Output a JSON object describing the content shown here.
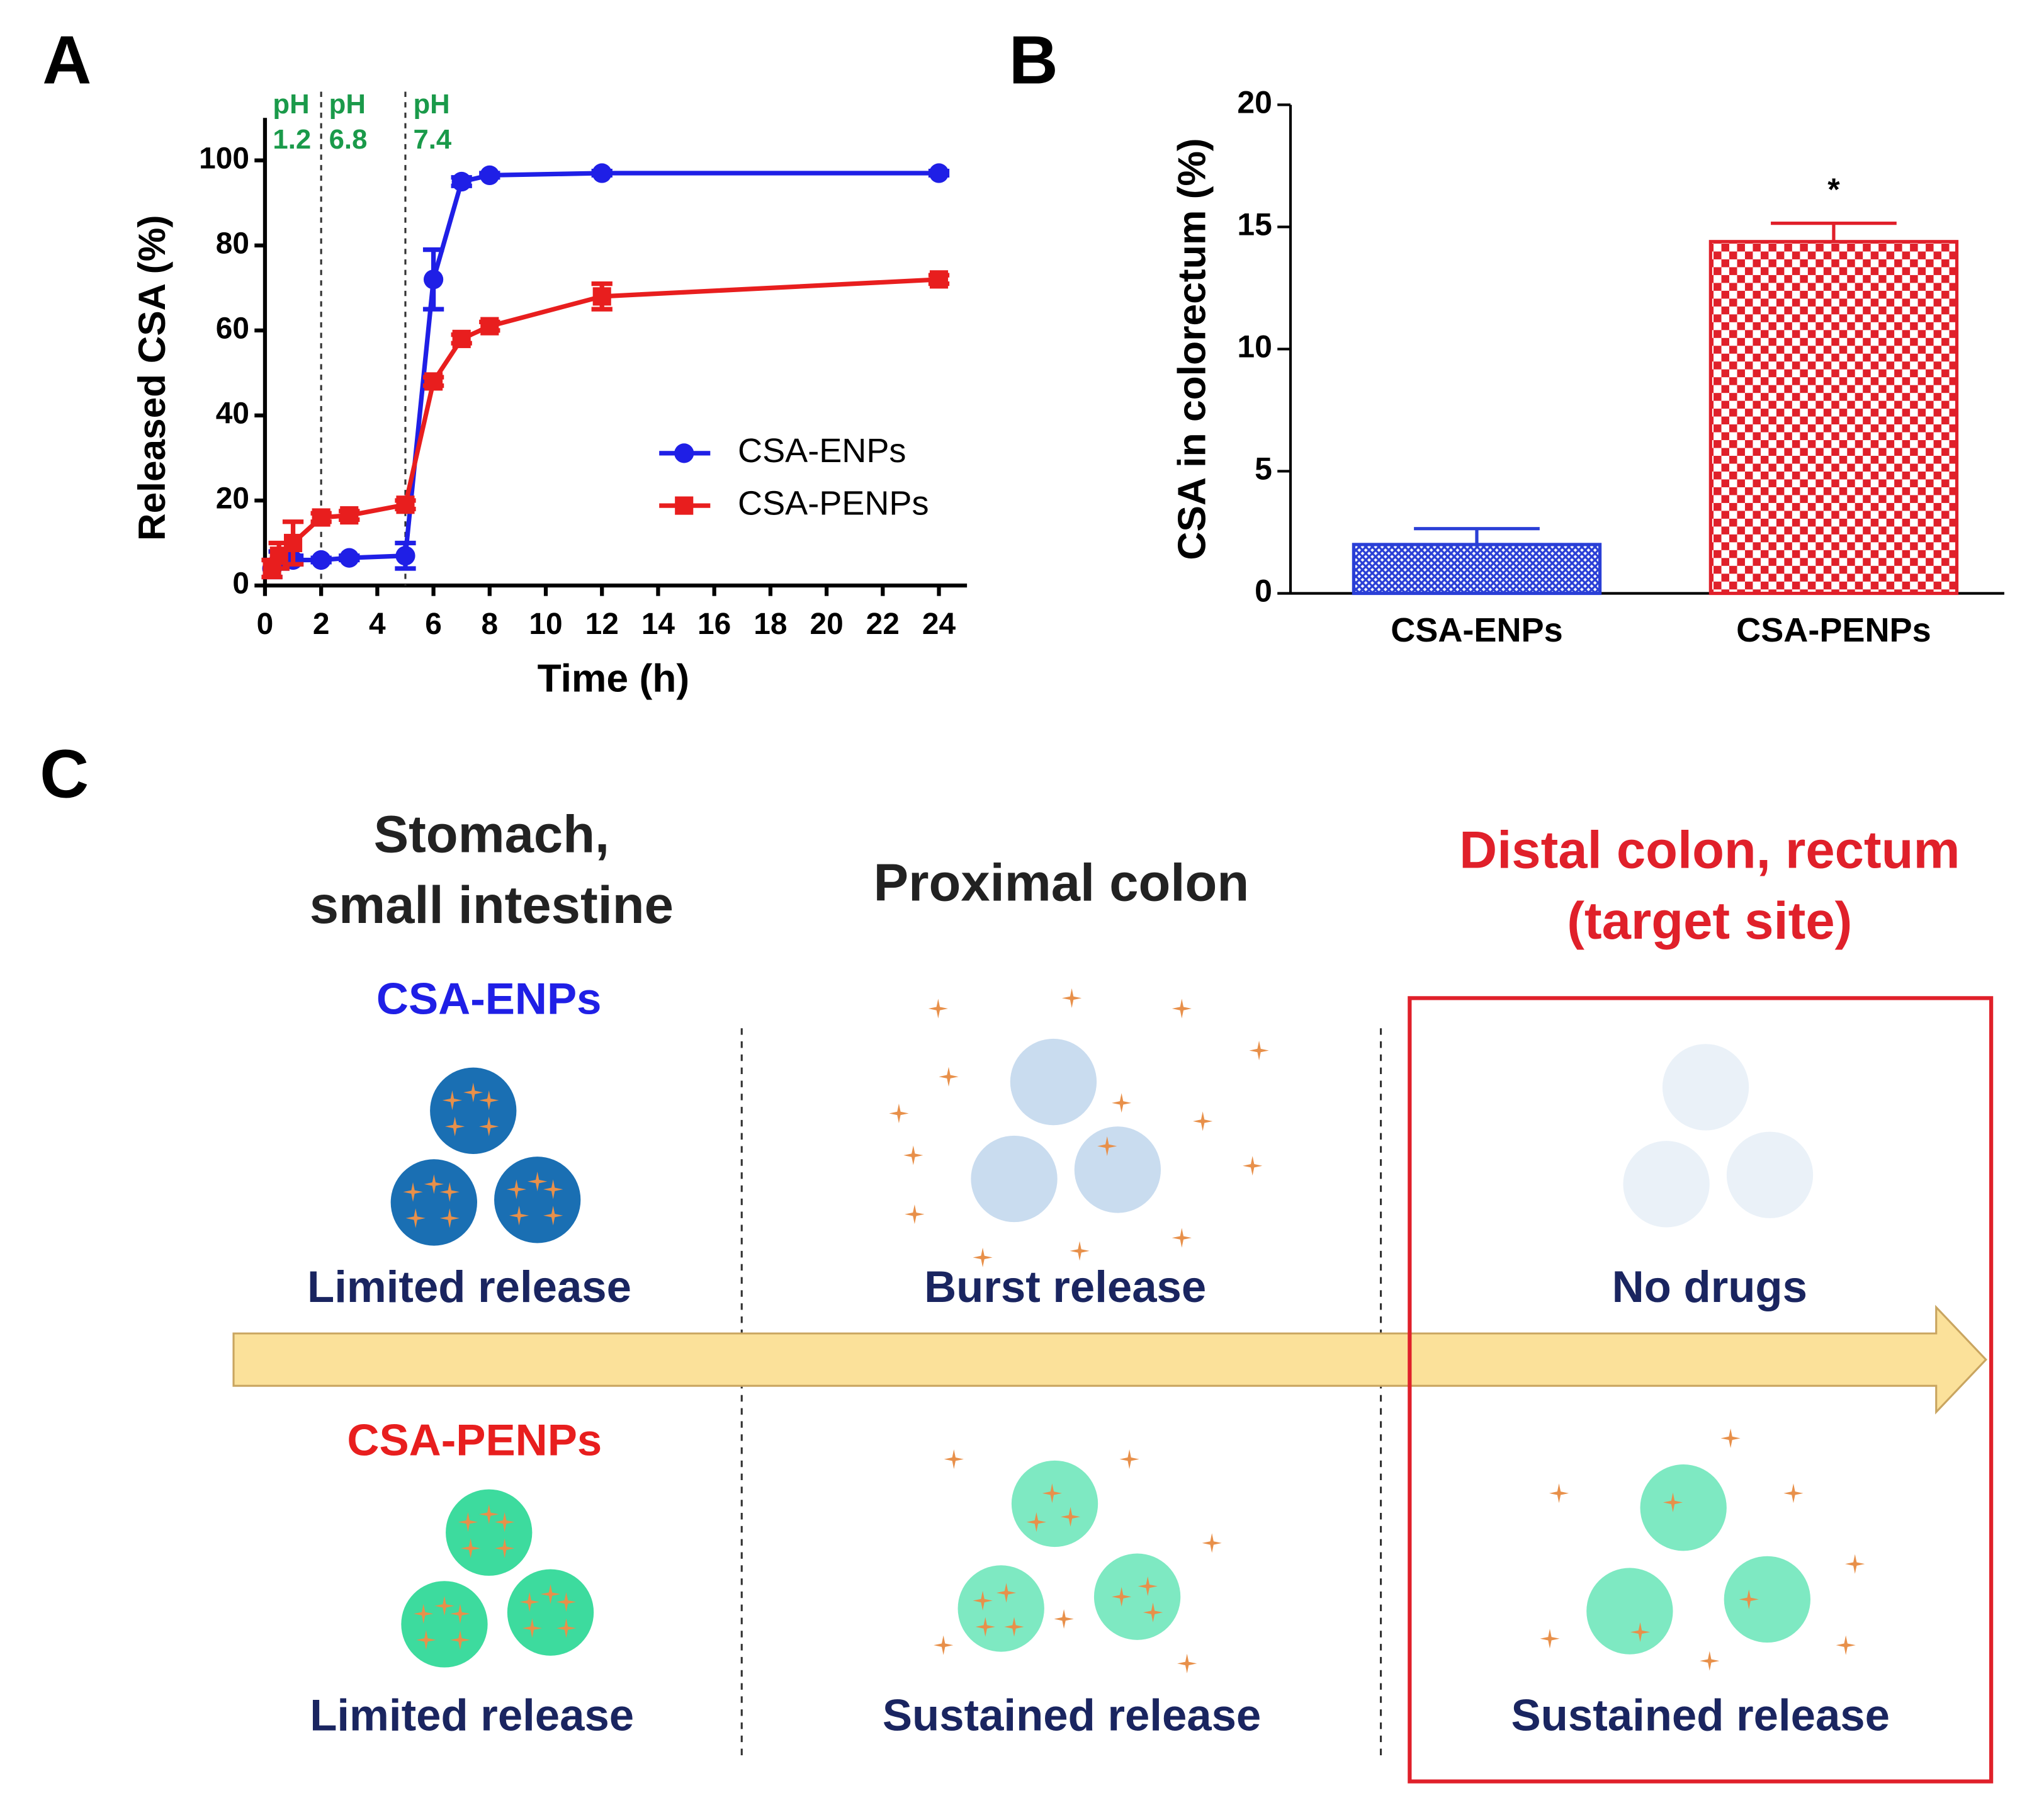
{
  "chart_data": [
    {
      "panel": "A",
      "type": "line",
      "xlabel": "Time (h)",
      "ylabel": "Released CSA (%)",
      "xlim": [
        0,
        25
      ],
      "xticks": [
        0,
        2,
        4,
        6,
        8,
        10,
        12,
        14,
        16,
        18,
        20,
        22,
        24
      ],
      "ylim": [
        0,
        110
      ],
      "yticks": [
        0,
        20,
        40,
        60,
        80,
        100
      ],
      "vlines": [
        2,
        5
      ],
      "annotations": [
        {
          "lines": [
            "pH",
            "1.2"
          ],
          "x": 0
        },
        {
          "lines": [
            "pH",
            "6.8"
          ],
          "x": 2
        },
        {
          "lines": [
            "pH",
            "7.4"
          ],
          "x": 5
        }
      ],
      "legend": "right",
      "series": [
        {
          "name": "CSA-ENPs",
          "color": "#1f1fe6",
          "marker": "circle",
          "x": [
            0.25,
            0.5,
            1,
            2,
            3,
            5,
            6,
            7,
            8,
            12,
            24
          ],
          "values": [
            4,
            6,
            6,
            6,
            6.5,
            7,
            72,
            95,
            96.5,
            97,
            97
          ],
          "errors": [
            2,
            2,
            1,
            0.5,
            0.5,
            3,
            7,
            1,
            0.5,
            0.5,
            0.5
          ]
        },
        {
          "name": "CSA-PENPs",
          "color": "#e81e1e",
          "marker": "square",
          "x": [
            0.25,
            0.5,
            1,
            2,
            3,
            5,
            6,
            7,
            8,
            12,
            24
          ],
          "values": [
            4,
            7,
            10,
            16,
            16.5,
            19,
            48,
            58,
            61,
            68,
            72
          ],
          "errors": [
            2,
            3,
            5,
            1,
            1,
            1,
            1,
            1,
            1,
            3,
            1
          ]
        }
      ]
    },
    {
      "panel": "B",
      "type": "bar",
      "ylabel": "CSA in colorectum (%)",
      "categories": [
        "CSA-ENPs",
        "CSA-PENPs"
      ],
      "values": [
        2.0,
        14.4
      ],
      "errors": [
        0.65,
        0.75
      ],
      "colors": [
        "#2a3fd6",
        "#e0202a"
      ],
      "annotations": [
        null,
        "*"
      ],
      "ylim": [
        0,
        20
      ],
      "yticks": [
        0,
        5,
        10,
        15,
        20
      ]
    }
  ],
  "diagram": {
    "panel": "C",
    "columns": [
      {
        "title": [
          "Stomach,",
          "small intestine"
        ]
      },
      {
        "title": [
          "Proximal colon"
        ]
      },
      {
        "title": [
          "Distal colon, rectum",
          "(target site)"
        ]
      }
    ],
    "rows": [
      {
        "name": "CSA-ENPs",
        "labels": [
          "Limited release",
          "Burst release",
          "No drugs"
        ]
      },
      {
        "name": "CSA-PENPs",
        "labels": [
          "Limited release",
          "Sustained release",
          "Sustained release"
        ]
      }
    ]
  }
}
